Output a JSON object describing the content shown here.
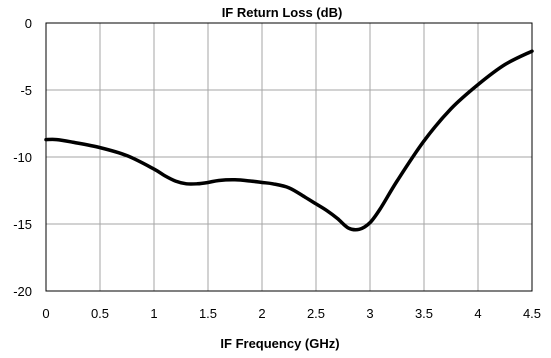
{
  "chart_data": {
    "type": "line",
    "title": "IF Return Loss (dB)",
    "xlabel": "IF Frequency  (GHz)",
    "ylabel": "",
    "xlim": [
      0,
      4.5
    ],
    "ylim": [
      -20,
      0
    ],
    "x_ticks": [
      "0",
      "0.5",
      "1",
      "1.5",
      "2",
      "2.5",
      "3",
      "3.5",
      "4",
      "4.5"
    ],
    "y_ticks": [
      "0",
      "-5",
      "-10",
      "-15",
      "-20"
    ],
    "grid": true,
    "legend": "none",
    "series": [
      {
        "color": "#000000",
        "x": [
          0.0,
          0.1,
          0.25,
          0.5,
          0.75,
          1.0,
          1.1,
          1.2,
          1.3,
          1.4,
          1.5,
          1.6,
          1.75,
          1.9,
          2.0,
          2.1,
          2.25,
          2.4,
          2.5,
          2.6,
          2.7,
          2.8,
          2.9,
          3.0,
          3.1,
          3.25,
          3.5,
          3.75,
          4.0,
          4.25,
          4.5
        ],
        "y": [
          -8.7,
          -8.7,
          -8.9,
          -9.3,
          -9.9,
          -10.9,
          -11.4,
          -11.8,
          -12.0,
          -12.0,
          -11.9,
          -11.75,
          -11.7,
          -11.8,
          -11.9,
          -12.0,
          -12.3,
          -13.0,
          -13.5,
          -14.0,
          -14.6,
          -15.3,
          -15.4,
          -14.9,
          -13.8,
          -11.8,
          -8.8,
          -6.4,
          -4.6,
          -3.1,
          -2.1
        ]
      }
    ]
  }
}
